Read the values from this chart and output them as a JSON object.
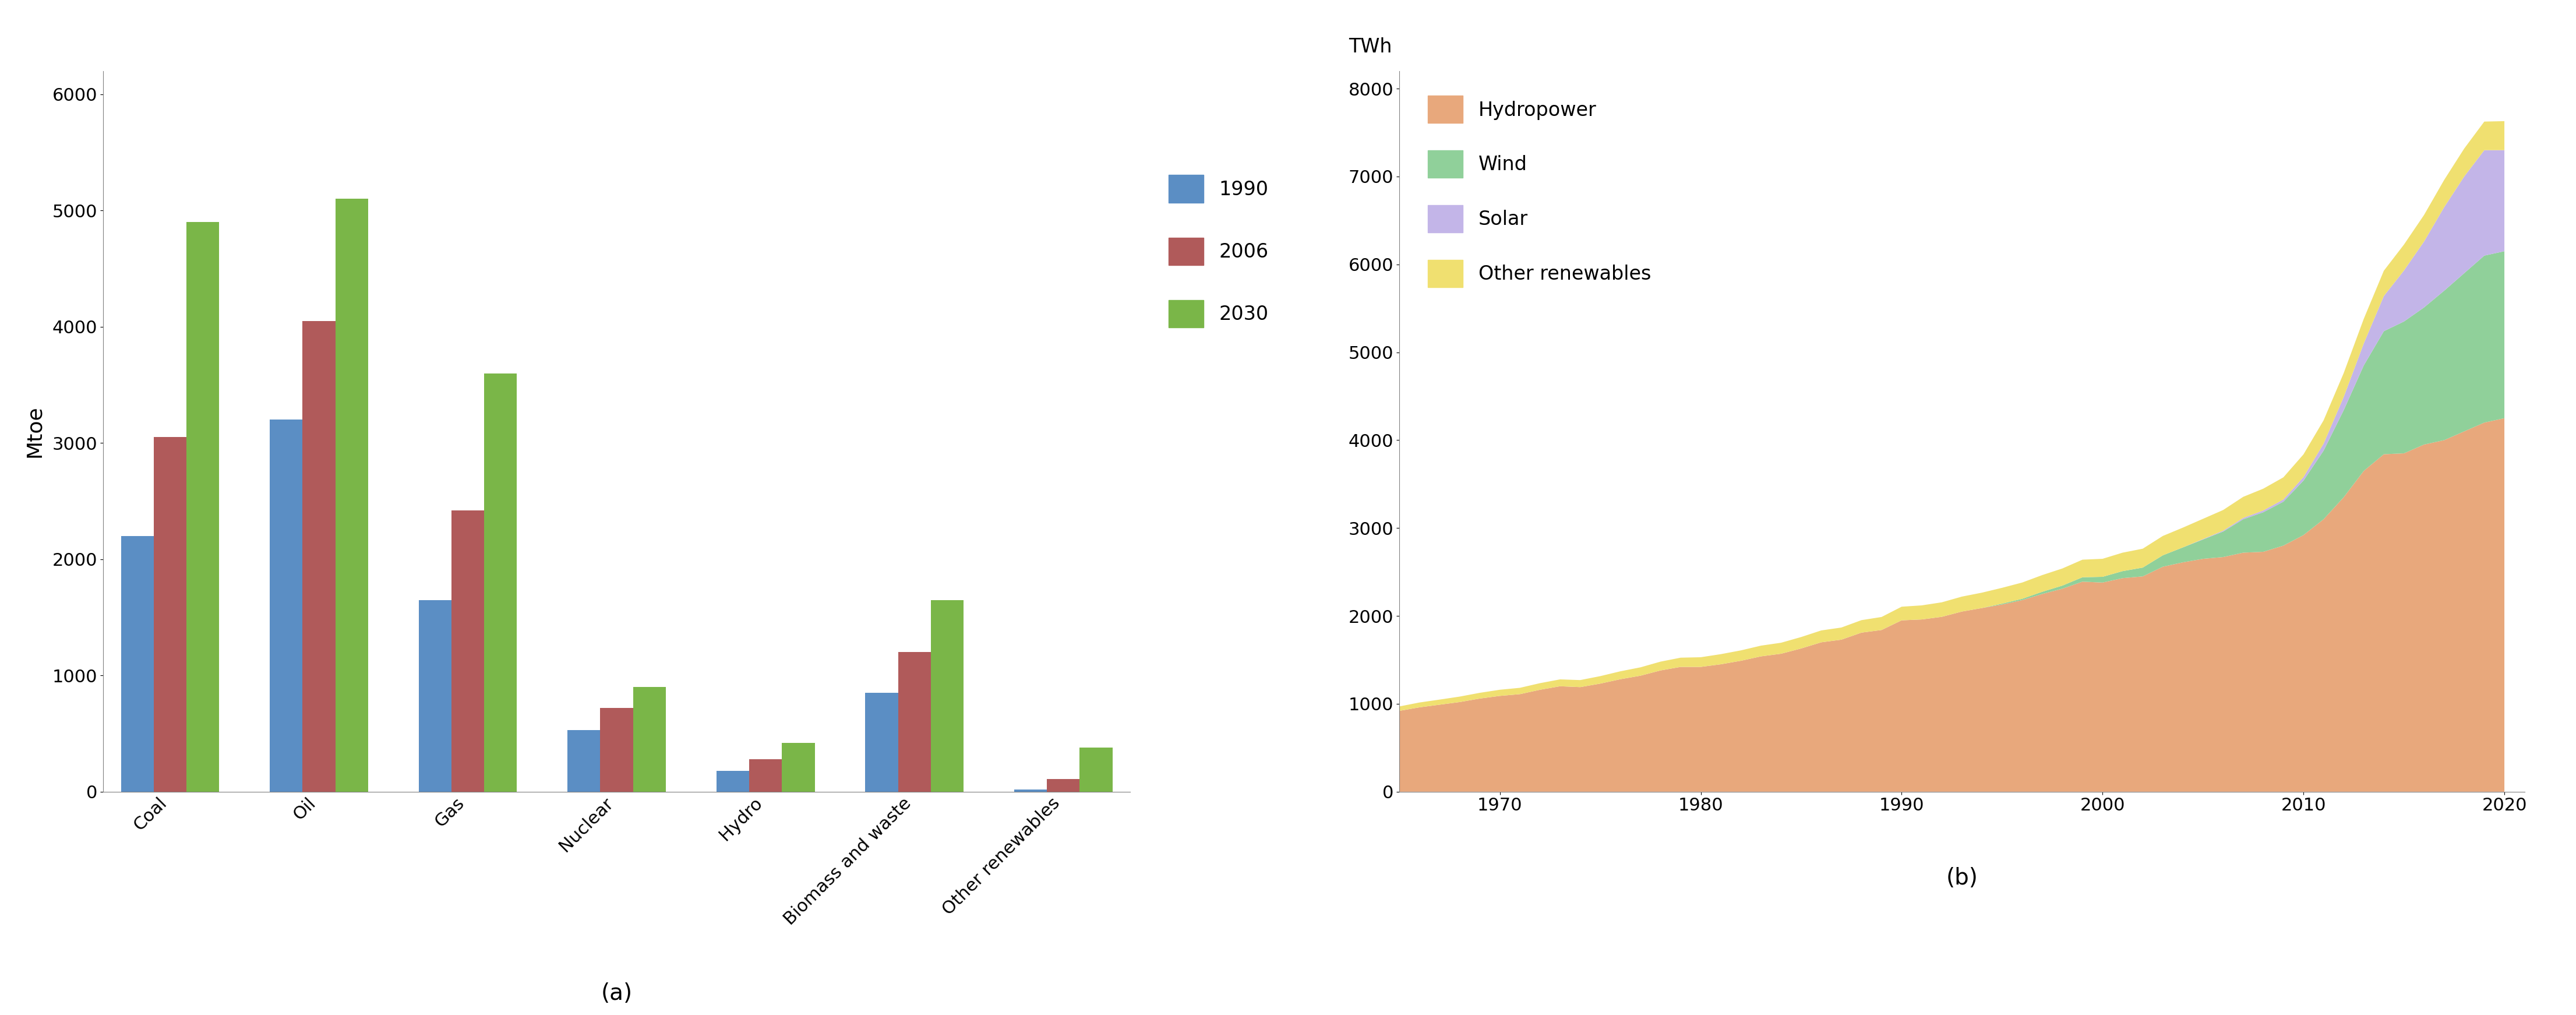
{
  "bar_categories": [
    "Coal",
    "Oil",
    "Gas",
    "Nuclear",
    "Hydro",
    "Biomass and waste",
    "Other renewables"
  ],
  "bar_series_labels": [
    "1990",
    "2006",
    "2030"
  ],
  "bar_colors": [
    "#5b8ec4",
    "#b05a5a",
    "#7ab648"
  ],
  "bar_data": {
    "1990": [
      2200,
      3200,
      1650,
      530,
      180,
      850,
      20
    ],
    "2006": [
      3050,
      4050,
      2420,
      720,
      280,
      1200,
      110
    ],
    "2030": [
      4900,
      5100,
      3600,
      900,
      420,
      1650,
      380
    ]
  },
  "bar_ylabel": "Mtoe",
  "bar_ylim": [
    0,
    6200
  ],
  "bar_yticks": [
    0,
    1000,
    2000,
    3000,
    4000,
    5000,
    6000
  ],
  "bar_label_a": "(a)",
  "area_years": [
    1965,
    1966,
    1967,
    1968,
    1969,
    1970,
    1971,
    1972,
    1973,
    1974,
    1975,
    1976,
    1977,
    1978,
    1979,
    1980,
    1981,
    1982,
    1983,
    1984,
    1985,
    1986,
    1987,
    1988,
    1989,
    1990,
    1991,
    1992,
    1993,
    1994,
    1995,
    1996,
    1997,
    1998,
    1999,
    2000,
    2001,
    2002,
    2003,
    2004,
    2005,
    2006,
    2007,
    2008,
    2009,
    2010,
    2011,
    2012,
    2013,
    2014,
    2015,
    2016,
    2017,
    2018,
    2019,
    2020
  ],
  "area_hydropower": [
    920,
    960,
    990,
    1020,
    1060,
    1090,
    1110,
    1160,
    1200,
    1190,
    1230,
    1280,
    1320,
    1380,
    1420,
    1420,
    1450,
    1490,
    1540,
    1570,
    1630,
    1700,
    1730,
    1810,
    1840,
    1950,
    1960,
    1990,
    2050,
    2090,
    2130,
    2180,
    2250,
    2310,
    2390,
    2380,
    2430,
    2450,
    2560,
    2610,
    2650,
    2670,
    2720,
    2730,
    2800,
    2920,
    3100,
    3350,
    3650,
    3840,
    3850,
    3950,
    4000,
    4100,
    4200,
    4250
  ],
  "area_wind": [
    0,
    0,
    0,
    0,
    0,
    0,
    0,
    0,
    0,
    0,
    0,
    0,
    0,
    0,
    0,
    0,
    0,
    0,
    0,
    0,
    0,
    0,
    0,
    0,
    0,
    0,
    0,
    0,
    0,
    0,
    10,
    15,
    25,
    35,
    50,
    65,
    80,
    100,
    130,
    170,
    220,
    290,
    380,
    450,
    500,
    620,
    780,
    990,
    1200,
    1400,
    1500,
    1560,
    1700,
    1800,
    1900,
    1900
  ],
  "area_solar": [
    0,
    0,
    0,
    0,
    0,
    0,
    0,
    0,
    0,
    0,
    0,
    0,
    0,
    0,
    0,
    0,
    0,
    0,
    0,
    0,
    0,
    0,
    0,
    0,
    0,
    0,
    0,
    0,
    0,
    0,
    0,
    0,
    0,
    0,
    0,
    0,
    0,
    0,
    0,
    0,
    5,
    10,
    15,
    20,
    25,
    40,
    80,
    150,
    250,
    400,
    580,
    750,
    950,
    1100,
    1200,
    1150
  ],
  "area_other_renewables": [
    50,
    55,
    58,
    62,
    65,
    70,
    72,
    75,
    78,
    80,
    85,
    90,
    95,
    100,
    105,
    110,
    115,
    118,
    122,
    125,
    130,
    135,
    138,
    142,
    148,
    155,
    160,
    165,
    170,
    175,
    180,
    185,
    190,
    195,
    200,
    205,
    210,
    215,
    220,
    225,
    230,
    235,
    240,
    248,
    252,
    258,
    265,
    272,
    280,
    288,
    295,
    302,
    310,
    318,
    325,
    330
  ],
  "area_colors": [
    "#E8A87C",
    "#90D09A",
    "#C3B5E8",
    "#F0E070"
  ],
  "area_labels": [
    "Hydropower",
    "Wind",
    "Solar",
    "Other renewables"
  ],
  "area_ylabel": "TWh",
  "area_ylim": [
    0,
    8200
  ],
  "area_yticks": [
    0,
    1000,
    2000,
    3000,
    4000,
    5000,
    6000,
    7000,
    8000
  ],
  "area_xlim": [
    1965,
    2021
  ],
  "area_xticks": [
    1970,
    1980,
    1990,
    2000,
    2010,
    2020
  ],
  "area_label_b": "(b)"
}
